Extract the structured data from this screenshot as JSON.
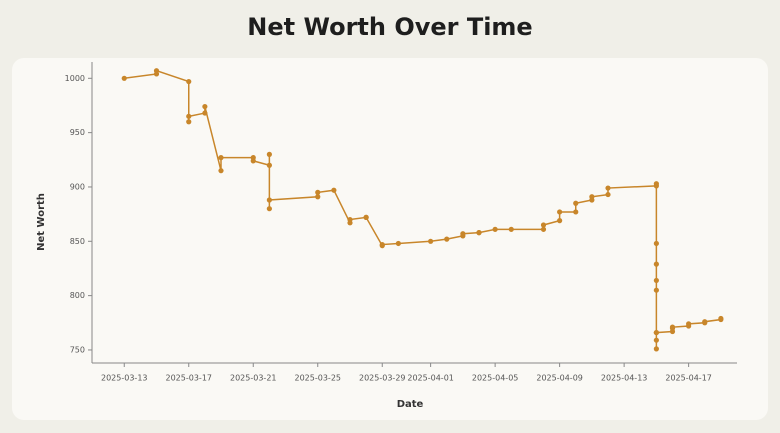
{
  "chart_data": {
    "type": "line",
    "title": "Net Worth Over Time",
    "x_label": "Date",
    "y_label": "Net Worth",
    "x": [
      "2025-03-13",
      "2025-03-15",
      "2025-03-15",
      "2025-03-17",
      "2025-03-17",
      "2025-03-17",
      "2025-03-18",
      "2025-03-18",
      "2025-03-19",
      "2025-03-19",
      "2025-03-21",
      "2025-03-21",
      "2025-03-22",
      "2025-03-22",
      "2025-03-22",
      "2025-03-22",
      "2025-03-25",
      "2025-03-25",
      "2025-03-26",
      "2025-03-27",
      "2025-03-27",
      "2025-03-28",
      "2025-03-28",
      "2025-03-29",
      "2025-03-29",
      "2025-03-30",
      "2025-04-01",
      "2025-04-02",
      "2025-04-03",
      "2025-04-03",
      "2025-04-04",
      "2025-04-04",
      "2025-04-05",
      "2025-04-06",
      "2025-04-08",
      "2025-04-08",
      "2025-04-09",
      "2025-04-09",
      "2025-04-10",
      "2025-04-10",
      "2025-04-11",
      "2025-04-11",
      "2025-04-12",
      "2025-04-12",
      "2025-04-15",
      "2025-04-15",
      "2025-04-15",
      "2025-04-15",
      "2025-04-15",
      "2025-04-15",
      "2025-04-15",
      "2025-04-15",
      "2025-04-15",
      "2025-04-15",
      "2025-04-16",
      "2025-04-16",
      "2025-04-16",
      "2025-04-17",
      "2025-04-17",
      "2025-04-18",
      "2025-04-18",
      "2025-04-19",
      "2025-04-19"
    ],
    "series": [
      {
        "name": "Net Worth",
        "color": "#c8862a",
        "values": [
          1000,
          1004,
          1007,
          997,
          960,
          965,
          968,
          974,
          915,
          927,
          927,
          924,
          920,
          930,
          880,
          888,
          891,
          895,
          897,
          867,
          870,
          872,
          872,
          846,
          847,
          848,
          850,
          852,
          855,
          857,
          858,
          858,
          861,
          861,
          861,
          865,
          869,
          877,
          877,
          885,
          888,
          891,
          893,
          899,
          901,
          903,
          848,
          829,
          814,
          805,
          766,
          759,
          751,
          766,
          767,
          770,
          771,
          772,
          774,
          775,
          776,
          778,
          779
        ]
      }
    ],
    "xlim": [
      "2025-03-11",
      "2025-04-20"
    ],
    "xticks": [
      "2025-03-13",
      "2025-03-17",
      "2025-03-21",
      "2025-03-25",
      "2025-03-29",
      "2025-04-01",
      "2025-04-05",
      "2025-04-09",
      "2025-04-13",
      "2025-04-17"
    ],
    "ylim": [
      738,
      1015
    ],
    "yticks": [
      750,
      800,
      850,
      900,
      950,
      1000
    ],
    "grid": false,
    "markers": true
  }
}
